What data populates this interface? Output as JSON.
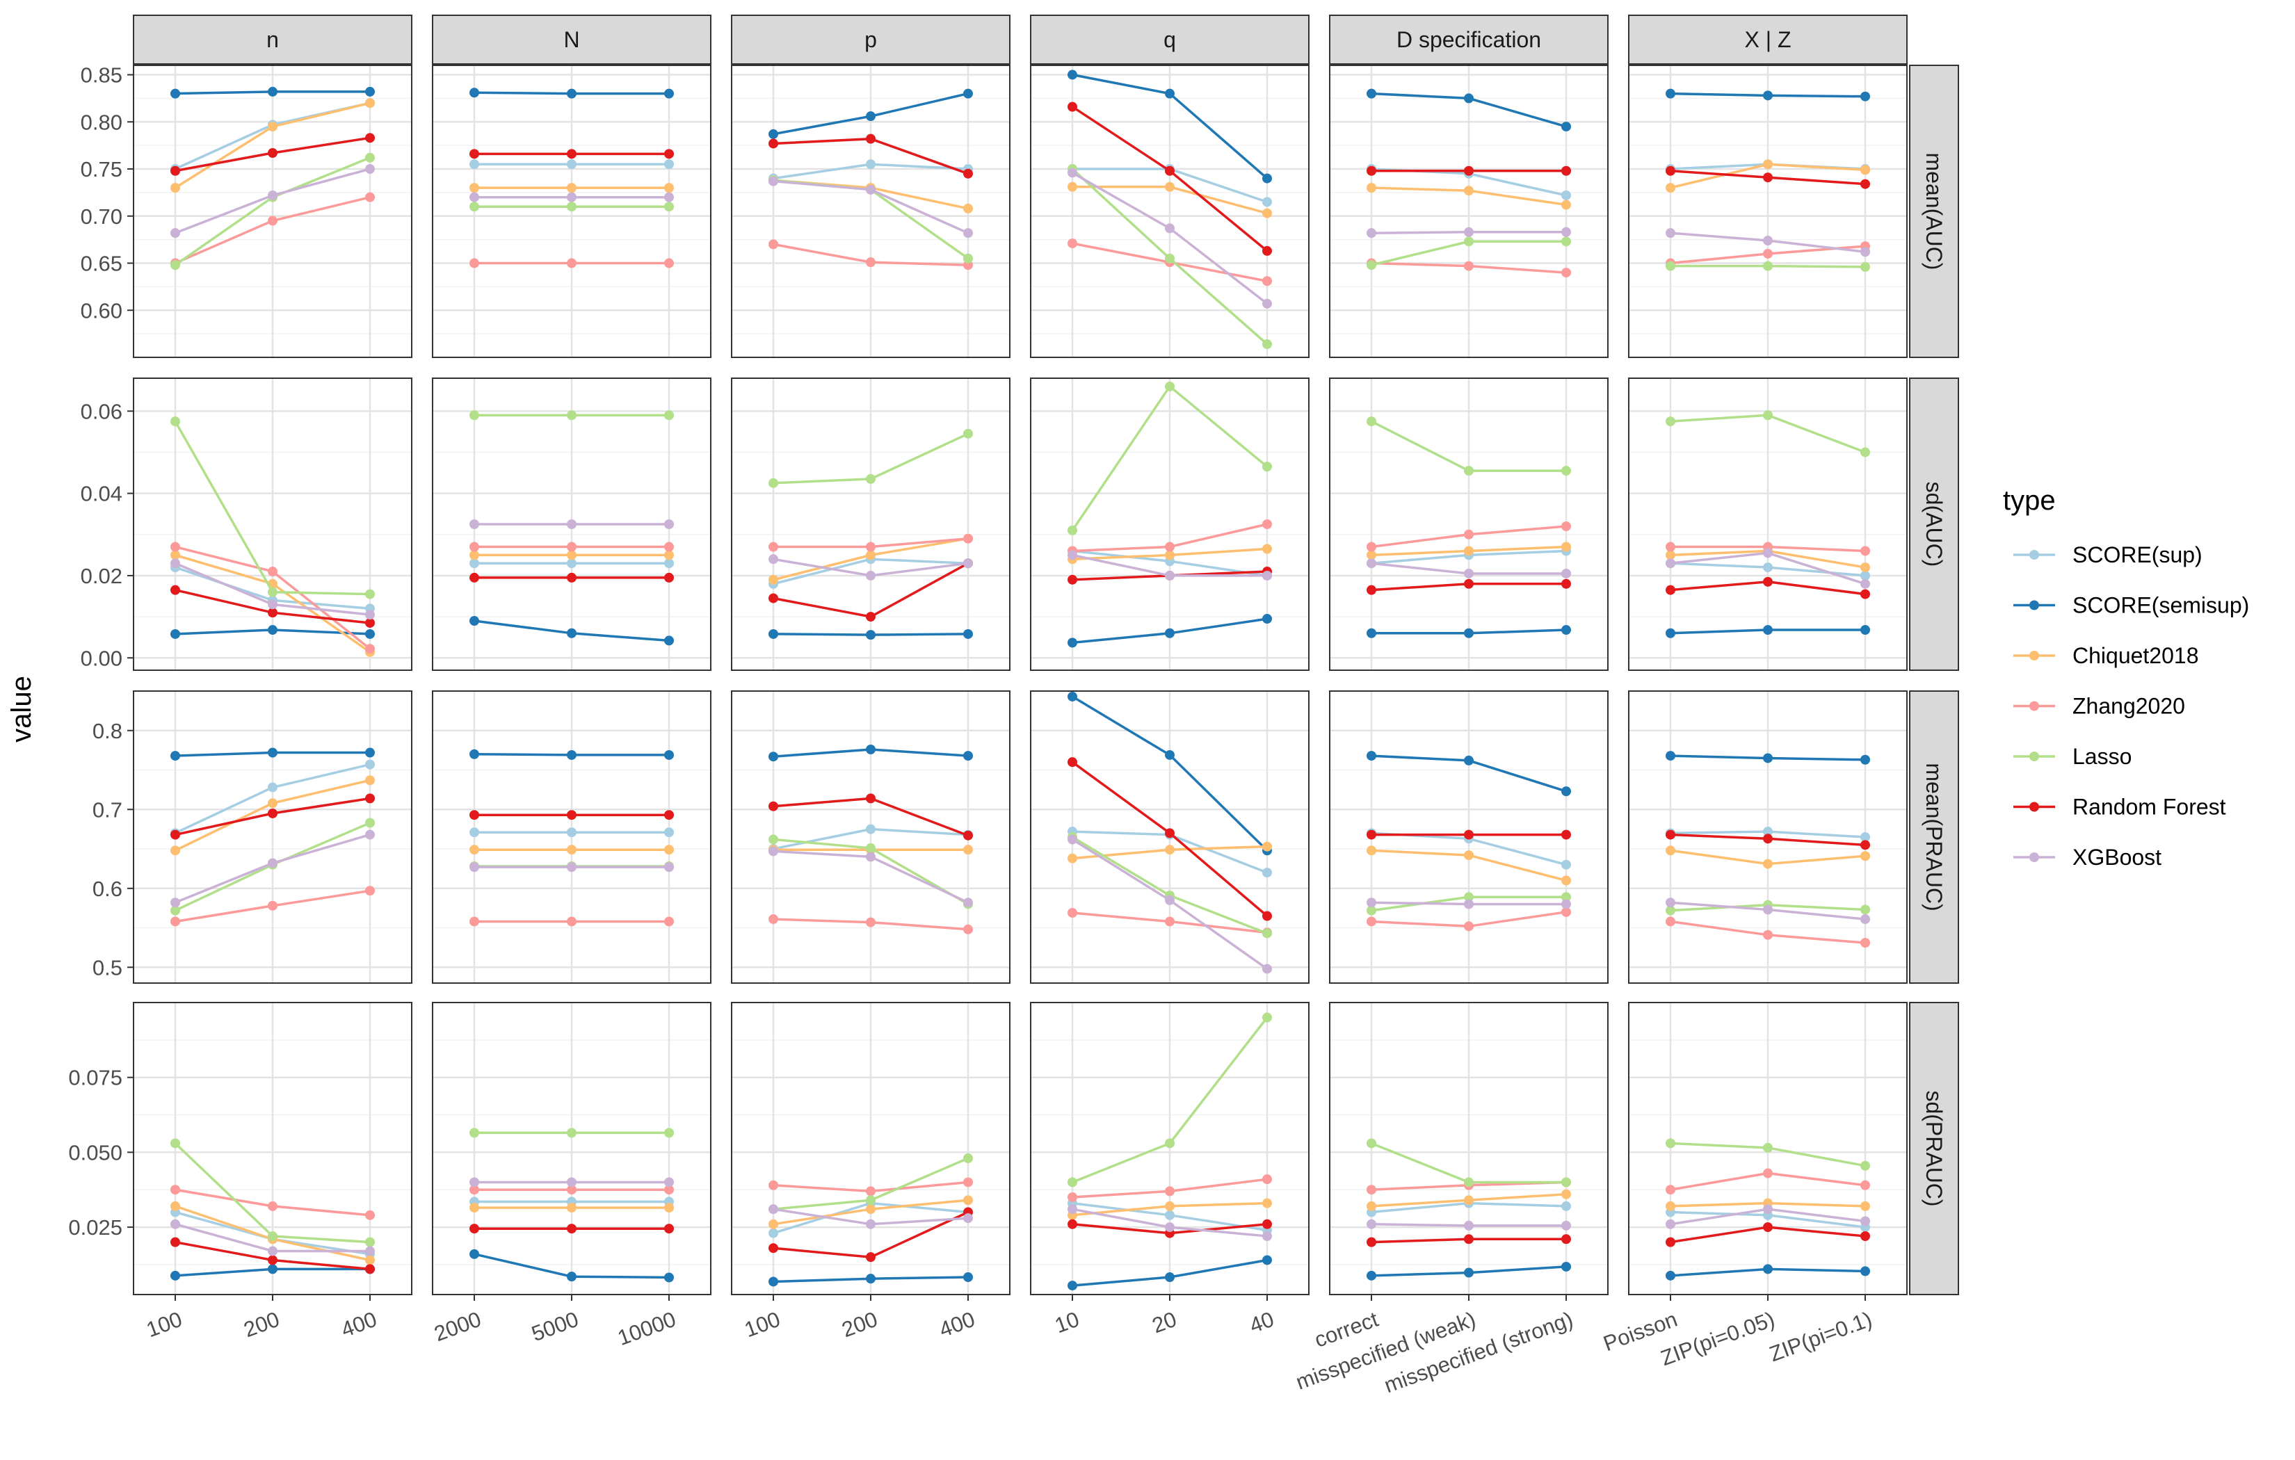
{
  "chart_data": {
    "type": "line",
    "layout": "facet_grid",
    "ylabel": "value",
    "legend_title": "type",
    "legend_position": "right",
    "column_facets": [
      {
        "label": "n",
        "categories": [
          "100",
          "200",
          "400"
        ]
      },
      {
        "label": "N",
        "categories": [
          "2000",
          "5000",
          "10000"
        ]
      },
      {
        "label": "p",
        "categories": [
          "100",
          "200",
          "400"
        ]
      },
      {
        "label": "q",
        "categories": [
          "10",
          "20",
          "40"
        ]
      },
      {
        "label": "D specification",
        "categories": [
          "correct",
          "misspecified (weak)",
          "misspecified (strong)"
        ]
      },
      {
        "label": "X | Z",
        "categories": [
          "Poisson",
          "ZIP(pi=0.05)",
          "ZIP(pi=0.1)"
        ]
      }
    ],
    "row_facets": [
      {
        "label": "mean(AUC)",
        "ylim": [
          0.55,
          0.86
        ],
        "ticks": [
          0.6,
          0.65,
          0.7,
          0.75,
          0.8,
          0.85
        ],
        "tick_labels": [
          "0.60",
          "0.65",
          "0.70",
          "0.75",
          "0.80",
          "0.85"
        ]
      },
      {
        "label": "sd(AUC)",
        "ylim": [
          -0.003,
          0.068
        ],
        "ticks": [
          0.0,
          0.02,
          0.04,
          0.06
        ],
        "tick_labels": [
          "0.00",
          "0.02",
          "0.04",
          "0.06"
        ]
      },
      {
        "label": "mean(PRAUC)",
        "ylim": [
          0.48,
          0.85
        ],
        "ticks": [
          0.5,
          0.6,
          0.7,
          0.8
        ],
        "tick_labels": [
          "0.5",
          "0.6",
          "0.7",
          "0.8"
        ]
      },
      {
        "label": "sd(PRAUC)",
        "ylim": [
          0.0025,
          0.1
        ],
        "ticks": [
          0.025,
          0.05,
          0.075
        ],
        "tick_labels": [
          "0.025",
          "0.050",
          "0.075"
        ]
      }
    ],
    "series": [
      {
        "name": "SCORE(sup)",
        "color": "#a6cee3"
      },
      {
        "name": "SCORE(semisup)",
        "color": "#1f78b4"
      },
      {
        "name": "Chiquet2018",
        "color": "#fdbf6f"
      },
      {
        "name": "Zhang2020",
        "color": "#fb9a99"
      },
      {
        "name": "Lasso",
        "color": "#b2df8a"
      },
      {
        "name": "Random Forest",
        "color": "#e31a1c"
      },
      {
        "name": "XGBoost",
        "color": "#cab2d6"
      }
    ],
    "values": [
      [
        [
          [
            0.75,
            0.797,
            0.82
          ],
          [
            0.83,
            0.832,
            0.832
          ],
          [
            0.73,
            0.795,
            0.82
          ],
          [
            0.65,
            0.695,
            0.72
          ],
          [
            0.648,
            0.72,
            0.762
          ],
          [
            0.748,
            0.767,
            0.783
          ],
          [
            0.682,
            0.722,
            0.75
          ]
        ],
        [
          [
            0.755,
            0.755,
            0.755
          ],
          [
            0.831,
            0.83,
            0.83
          ],
          [
            0.73,
            0.73,
            0.73
          ],
          [
            0.65,
            0.65,
            0.65
          ],
          [
            0.71,
            0.71,
            0.71
          ],
          [
            0.766,
            0.766,
            0.766
          ],
          [
            0.72,
            0.72,
            0.72
          ]
        ],
        [
          [
            0.74,
            0.755,
            0.75
          ],
          [
            0.787,
            0.806,
            0.83
          ],
          [
            0.738,
            0.73,
            0.708
          ],
          [
            0.67,
            0.651,
            0.648
          ],
          [
            0.738,
            0.728,
            0.655
          ],
          [
            0.777,
            0.782,
            0.745
          ],
          [
            0.737,
            0.728,
            0.682
          ]
        ],
        [
          [
            0.75,
            0.75,
            0.715
          ],
          [
            0.85,
            0.83,
            0.74
          ],
          [
            0.731,
            0.731,
            0.703
          ],
          [
            0.671,
            0.651,
            0.631
          ],
          [
            0.75,
            0.655,
            0.564
          ],
          [
            0.816,
            0.748,
            0.663
          ],
          [
            0.746,
            0.687,
            0.607
          ]
        ],
        [
          [
            0.75,
            0.745,
            0.722
          ],
          [
            0.83,
            0.825,
            0.795
          ],
          [
            0.73,
            0.727,
            0.712
          ],
          [
            0.65,
            0.647,
            0.64
          ],
          [
            0.648,
            0.673,
            0.673
          ],
          [
            0.748,
            0.748,
            0.748
          ],
          [
            0.682,
            0.683,
            0.683
          ]
        ],
        [
          [
            0.75,
            0.755,
            0.75
          ],
          [
            0.83,
            0.828,
            0.827
          ],
          [
            0.73,
            0.755,
            0.749
          ],
          [
            0.65,
            0.66,
            0.668
          ],
          [
            0.647,
            0.647,
            0.646
          ],
          [
            0.748,
            0.741,
            0.734
          ],
          [
            0.682,
            0.674,
            0.662
          ]
        ]
      ],
      [
        [
          [
            0.022,
            0.014,
            0.012
          ],
          [
            0.0058,
            0.0068,
            0.0058
          ],
          [
            0.025,
            0.018,
            0.0014
          ],
          [
            0.027,
            0.021,
            0.0022
          ],
          [
            0.0575,
            0.016,
            0.0155
          ],
          [
            0.0165,
            0.011,
            0.0085
          ],
          [
            0.023,
            0.013,
            0.0105
          ]
        ],
        [
          [
            0.023,
            0.023,
            0.023
          ],
          [
            0.009,
            0.006,
            0.0042
          ],
          [
            0.025,
            0.025,
            0.025
          ],
          [
            0.027,
            0.027,
            0.027
          ],
          [
            0.059,
            0.059,
            0.059
          ],
          [
            0.0195,
            0.0195,
            0.0195
          ],
          [
            0.0325,
            0.0325,
            0.0325
          ]
        ],
        [
          [
            0.018,
            0.024,
            0.023
          ],
          [
            0.0058,
            0.0056,
            0.0058
          ],
          [
            0.019,
            0.025,
            0.029
          ],
          [
            0.027,
            0.027,
            0.029
          ],
          [
            0.0425,
            0.0435,
            0.0545
          ],
          [
            0.0145,
            0.01,
            0.023
          ],
          [
            0.024,
            0.02,
            0.023
          ]
        ],
        [
          [
            0.026,
            0.0235,
            0.02
          ],
          [
            0.0037,
            0.006,
            0.0095
          ],
          [
            0.024,
            0.025,
            0.0265
          ],
          [
            0.026,
            0.027,
            0.0325
          ],
          [
            0.031,
            0.066,
            0.0465
          ],
          [
            0.019,
            0.02,
            0.021
          ],
          [
            0.025,
            0.02,
            0.02
          ]
        ],
        [
          [
            0.023,
            0.025,
            0.026
          ],
          [
            0.006,
            0.006,
            0.0068
          ],
          [
            0.025,
            0.026,
            0.027
          ],
          [
            0.027,
            0.03,
            0.032
          ],
          [
            0.0575,
            0.0455,
            0.0455
          ],
          [
            0.0165,
            0.018,
            0.018
          ],
          [
            0.023,
            0.0205,
            0.0205
          ]
        ],
        [
          [
            0.023,
            0.022,
            0.02
          ],
          [
            0.006,
            0.0068,
            0.0068
          ],
          [
            0.025,
            0.026,
            0.022
          ],
          [
            0.027,
            0.027,
            0.026
          ],
          [
            0.0575,
            0.059,
            0.05
          ],
          [
            0.0165,
            0.0185,
            0.0155
          ],
          [
            0.023,
            0.0255,
            0.018
          ]
        ]
      ],
      [
        [
          [
            0.67,
            0.728,
            0.757
          ],
          [
            0.768,
            0.772,
            0.772
          ],
          [
            0.648,
            0.708,
            0.737
          ],
          [
            0.558,
            0.578,
            0.597
          ],
          [
            0.572,
            0.63,
            0.683
          ],
          [
            0.668,
            0.695,
            0.714
          ],
          [
            0.582,
            0.632,
            0.668
          ]
        ],
        [
          [
            0.671,
            0.671,
            0.671
          ],
          [
            0.77,
            0.769,
            0.769
          ],
          [
            0.649,
            0.649,
            0.649
          ],
          [
            0.558,
            0.558,
            0.558
          ],
          [
            0.628,
            0.628,
            0.628
          ],
          [
            0.693,
            0.693,
            0.693
          ],
          [
            0.627,
            0.627,
            0.627
          ]
        ],
        [
          [
            0.65,
            0.675,
            0.668
          ],
          [
            0.767,
            0.776,
            0.768
          ],
          [
            0.649,
            0.649,
            0.649
          ],
          [
            0.561,
            0.557,
            0.548
          ],
          [
            0.662,
            0.651,
            0.58
          ],
          [
            0.704,
            0.714,
            0.667
          ],
          [
            0.647,
            0.64,
            0.582
          ]
        ],
        [
          [
            0.672,
            0.668,
            0.62
          ],
          [
            0.843,
            0.769,
            0.648
          ],
          [
            0.638,
            0.649,
            0.653
          ],
          [
            0.569,
            0.558,
            0.544
          ],
          [
            0.665,
            0.591,
            0.543
          ],
          [
            0.76,
            0.67,
            0.565
          ],
          [
            0.662,
            0.585,
            0.498
          ]
        ],
        [
          [
            0.67,
            0.663,
            0.63
          ],
          [
            0.768,
            0.762,
            0.723
          ],
          [
            0.648,
            0.642,
            0.61
          ],
          [
            0.558,
            0.552,
            0.57
          ],
          [
            0.572,
            0.589,
            0.589
          ],
          [
            0.668,
            0.668,
            0.668
          ],
          [
            0.582,
            0.58,
            0.58
          ]
        ],
        [
          [
            0.67,
            0.672,
            0.665
          ],
          [
            0.768,
            0.765,
            0.763
          ],
          [
            0.648,
            0.631,
            0.641
          ],
          [
            0.558,
            0.541,
            0.531
          ],
          [
            0.572,
            0.579,
            0.573
          ],
          [
            0.668,
            0.663,
            0.655
          ],
          [
            0.582,
            0.573,
            0.561
          ]
        ]
      ],
      [
        [
          [
            0.03,
            0.021,
            0.016
          ],
          [
            0.0088,
            0.011,
            0.011
          ],
          [
            0.032,
            0.021,
            0.014
          ],
          [
            0.0375,
            0.032,
            0.029
          ],
          [
            0.053,
            0.022,
            0.02
          ],
          [
            0.02,
            0.014,
            0.011
          ],
          [
            0.026,
            0.017,
            0.017
          ]
        ],
        [
          [
            0.0335,
            0.0335,
            0.0335
          ],
          [
            0.016,
            0.0085,
            0.0082
          ],
          [
            0.0315,
            0.0315,
            0.0315
          ],
          [
            0.0375,
            0.0375,
            0.0375
          ],
          [
            0.0565,
            0.0565,
            0.0565
          ],
          [
            0.0245,
            0.0245,
            0.0245
          ],
          [
            0.04,
            0.04,
            0.04
          ]
        ],
        [
          [
            0.023,
            0.033,
            0.03
          ],
          [
            0.0068,
            0.0078,
            0.0083
          ],
          [
            0.026,
            0.031,
            0.034
          ],
          [
            0.039,
            0.037,
            0.04
          ],
          [
            0.031,
            0.034,
            0.048
          ],
          [
            0.018,
            0.015,
            0.03
          ],
          [
            0.031,
            0.026,
            0.028
          ]
        ],
        [
          [
            0.033,
            0.029,
            0.024
          ],
          [
            0.0055,
            0.0083,
            0.014
          ],
          [
            0.029,
            0.032,
            0.033
          ],
          [
            0.035,
            0.037,
            0.041
          ],
          [
            0.04,
            0.053,
            0.095
          ],
          [
            0.026,
            0.023,
            0.026
          ],
          [
            0.031,
            0.025,
            0.022
          ]
        ],
        [
          [
            0.03,
            0.033,
            0.032
          ],
          [
            0.0088,
            0.0098,
            0.0118
          ],
          [
            0.032,
            0.034,
            0.036
          ],
          [
            0.0375,
            0.039,
            0.04
          ],
          [
            0.053,
            0.04,
            0.04
          ],
          [
            0.02,
            0.021,
            0.021
          ],
          [
            0.026,
            0.0255,
            0.0255
          ]
        ],
        [
          [
            0.03,
            0.029,
            0.025
          ],
          [
            0.0088,
            0.011,
            0.0103
          ],
          [
            0.032,
            0.033,
            0.032
          ],
          [
            0.0375,
            0.043,
            0.039
          ],
          [
            0.053,
            0.0515,
            0.0455
          ],
          [
            0.02,
            0.025,
            0.022
          ],
          [
            0.026,
            0.031,
            0.027
          ]
        ]
      ]
    ]
  }
}
